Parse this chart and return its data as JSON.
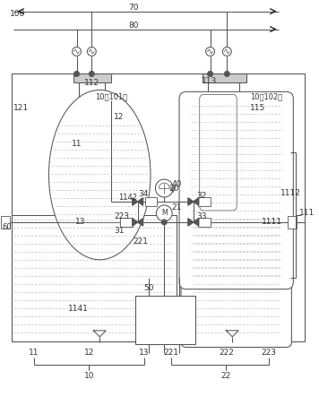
{
  "fig_width": 3.56,
  "fig_height": 4.43,
  "dpi": 100,
  "bg_color": "#ffffff",
  "lc": "#555555",
  "lw": 0.75,
  "lw_thin": 0.45,
  "lw_thick": 1.0
}
